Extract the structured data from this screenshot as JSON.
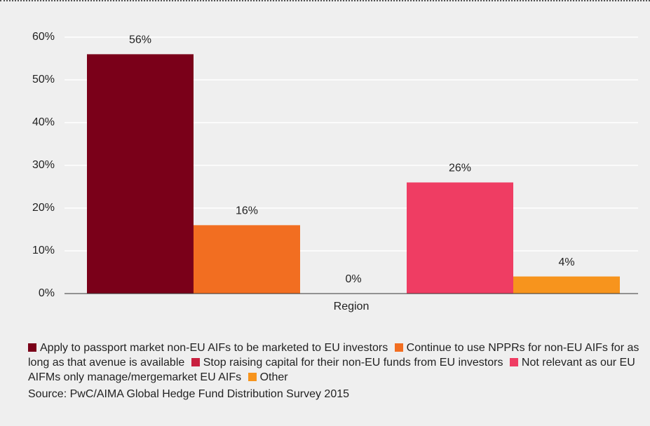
{
  "chart_data": {
    "type": "bar",
    "categories": [
      "Region"
    ],
    "series": [
      {
        "name": "Apply to passport market non-EU AIFs to be marketed to EU investors",
        "color": "#7a0019",
        "values": [
          56
        ],
        "value_labels": [
          "56%"
        ]
      },
      {
        "name": "Continue to use NPPRs for non-EU AIFs for as long as that avenue is available",
        "color": "#f26e21",
        "values": [
          16
        ],
        "value_labels": [
          "16%"
        ]
      },
      {
        "name": "Stop raising capital for their non-EU funds from EU investors",
        "color": "#c8203f",
        "values": [
          0
        ],
        "value_labels": [
          "0%"
        ]
      },
      {
        "name": "Not relevant as our EU AIFMs only manage/mergemarket EU AIFs",
        "color": "#ef3d63",
        "values": [
          26
        ],
        "value_labels": [
          "26%"
        ]
      },
      {
        "name": "Other",
        "color": "#f7941d",
        "values": [
          4
        ],
        "value_labels": [
          "4%"
        ]
      }
    ],
    "ylim": [
      0,
      60
    ],
    "yticks": [
      {
        "value": 0,
        "label": "0%"
      },
      {
        "value": 10,
        "label": "10%"
      },
      {
        "value": 20,
        "label": "20%"
      },
      {
        "value": 30,
        "label": "30%"
      },
      {
        "value": 40,
        "label": "40%"
      },
      {
        "value": 50,
        "label": "50%"
      },
      {
        "value": 60,
        "label": "60%"
      }
    ],
    "grid": true,
    "source": "Source: PwC/AIMA Global Hedge Fund Distribution Survey 2015"
  }
}
